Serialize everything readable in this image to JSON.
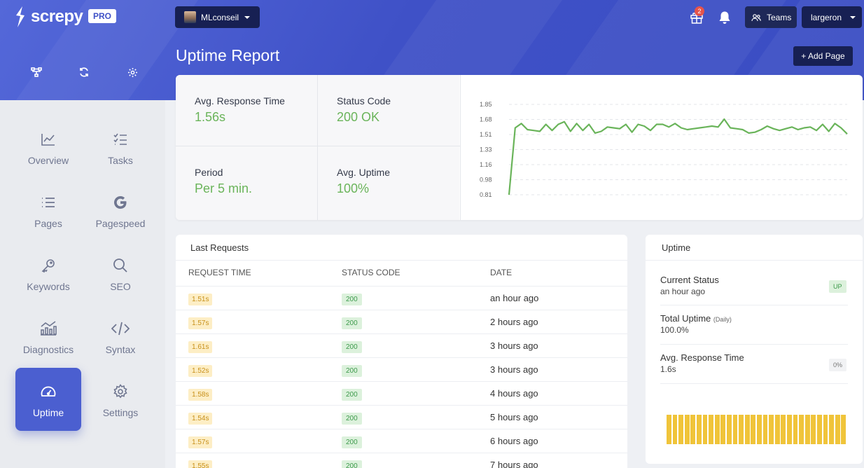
{
  "brand": {
    "name": "screpy",
    "plan_badge": "PRO"
  },
  "header": {
    "account_label": "MLconseil",
    "gift_badge_count": "2",
    "teams_label": "Teams",
    "user_label": "largeron"
  },
  "page": {
    "title": "Uptime Report",
    "add_page_label": "+ Add Page"
  },
  "quick_icons": [
    "sitemap-icon",
    "refresh-icon",
    "gear-icon"
  ],
  "sidebar": {
    "items": [
      {
        "label": "Overview",
        "icon": "chart-line-icon"
      },
      {
        "label": "Tasks",
        "icon": "checklist-icon"
      },
      {
        "label": "Pages",
        "icon": "list-icon"
      },
      {
        "label": "Pagespeed",
        "icon": "google-icon"
      },
      {
        "label": "Keywords",
        "icon": "key-icon"
      },
      {
        "label": "SEO",
        "icon": "search-icon"
      },
      {
        "label": "Diagnostics",
        "icon": "diagnostics-icon"
      },
      {
        "label": "Syntax",
        "icon": "code-icon"
      },
      {
        "label": "Uptime",
        "icon": "speedometer-icon",
        "active": true
      },
      {
        "label": "Settings",
        "icon": "gear-icon"
      }
    ]
  },
  "stats": {
    "avg_response_label": "Avg. Response Time",
    "avg_response_value": "1.56s",
    "status_code_label": "Status Code",
    "status_code_value": "200 OK",
    "period_label": "Period",
    "period_value": "Per 5 min.",
    "avg_uptime_label": "Avg. Uptime",
    "avg_uptime_value": "100%"
  },
  "chart_data": {
    "type": "line",
    "y_ticks": [
      "1.85",
      "1.68",
      "1.51",
      "1.33",
      "1.16",
      "0.98",
      "0.81"
    ],
    "ylim": [
      0.81,
      1.85
    ],
    "grid": true,
    "color": "#6ab45a",
    "values": [
      0.81,
      1.58,
      1.63,
      1.56,
      1.55,
      1.54,
      1.62,
      1.55,
      1.62,
      1.65,
      1.54,
      1.63,
      1.55,
      1.62,
      1.52,
      1.54,
      1.59,
      1.58,
      1.57,
      1.62,
      1.53,
      1.62,
      1.6,
      1.55,
      1.62,
      1.62,
      1.59,
      1.63,
      1.58,
      1.56,
      1.57,
      1.58,
      1.59,
      1.6,
      1.59,
      1.68,
      1.58,
      1.57,
      1.56,
      1.52,
      1.53,
      1.56,
      1.6,
      1.57,
      1.55,
      1.57,
      1.59,
      1.56,
      1.58,
      1.59,
      1.55,
      1.62,
      1.54,
      1.63,
      1.58,
      1.51
    ]
  },
  "requests": {
    "title": "Last Requests",
    "columns": [
      "REQUEST TIME",
      "STATUS CODE",
      "DATE"
    ],
    "rows": [
      {
        "time": "1.51s",
        "code": "200",
        "date": "an hour ago"
      },
      {
        "time": "1.57s",
        "code": "200",
        "date": "2 hours ago"
      },
      {
        "time": "1.61s",
        "code": "200",
        "date": "3 hours ago"
      },
      {
        "time": "1.52s",
        "code": "200",
        "date": "3 hours ago"
      },
      {
        "time": "1.58s",
        "code": "200",
        "date": "4 hours ago"
      },
      {
        "time": "1.54s",
        "code": "200",
        "date": "5 hours ago"
      },
      {
        "time": "1.57s",
        "code": "200",
        "date": "6 hours ago"
      },
      {
        "time": "1.55s",
        "code": "200",
        "date": "7 hours ago"
      }
    ]
  },
  "uptime_panel": {
    "title": "Uptime",
    "current_status_label": "Current Status",
    "current_status_time": "an hour ago",
    "current_status_badge": "UP",
    "total_uptime_label": "Total Uptime",
    "total_uptime_period": "(Daily)",
    "total_uptime_value": "100.0%",
    "avg_response_label": "Avg. Response Time",
    "avg_response_value": "1.6s",
    "avg_response_badge": "0%",
    "bar_color": "#f0c43a",
    "bar_count": 30
  }
}
